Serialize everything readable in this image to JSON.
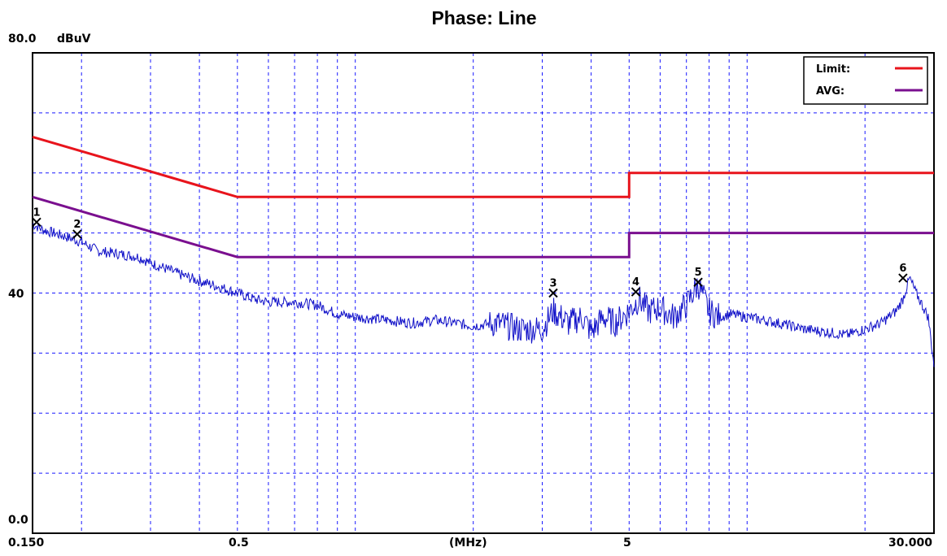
{
  "chart_data": {
    "type": "line",
    "title": "Phase: Line",
    "xlabel": "(MHz)",
    "ylabel": "dBuV",
    "x_scale": "log",
    "xlim": [
      0.15,
      30.0
    ],
    "ylim": [
      0,
      80
    ],
    "x_tick_labels": [
      "0.150",
      "0.5",
      "5",
      "30.000"
    ],
    "y_tick_labels": [
      "80.0",
      "40",
      "0.0"
    ],
    "y_grid": [
      10,
      20,
      30,
      40,
      50,
      60,
      70
    ],
    "grid": true,
    "legend_position": "top-right",
    "colors": {
      "limit": "#e8141c",
      "avg": "#7a0f8f",
      "trace": "#1010c8",
      "grid": "#1a1aff"
    },
    "series": [
      {
        "name": "Limit:",
        "color": "#e8141c",
        "x": [
          0.15,
          0.5,
          0.5,
          5.0,
          5.0,
          30.0
        ],
        "y": [
          66,
          56,
          56,
          56,
          60,
          60
        ]
      },
      {
        "name": "AVG:",
        "color": "#7a0f8f",
        "x": [
          0.15,
          0.5,
          0.5,
          5.0,
          5.0,
          30.0
        ],
        "y": [
          56,
          46,
          46,
          46,
          50,
          50
        ]
      }
    ],
    "trace": {
      "color": "#1010c8",
      "x": [
        0.15,
        0.16,
        0.18,
        0.2,
        0.22,
        0.25,
        0.28,
        0.3,
        0.33,
        0.36,
        0.4,
        0.45,
        0.5,
        0.55,
        0.6,
        0.7,
        0.8,
        0.9,
        1.0,
        1.2,
        1.4,
        1.6,
        1.8,
        2.0,
        2.3,
        2.6,
        3.0,
        3.2,
        3.5,
        3.8,
        4.0,
        4.3,
        4.6,
        5.0,
        5.3,
        5.6,
        6.0,
        6.5,
        7.0,
        7.5,
        8.0,
        8.5,
        9.0,
        10.0,
        11.0,
        12.0,
        13.0,
        14.0,
        16.0,
        18.0,
        20.0,
        22.0,
        24.0,
        25.0,
        26.0,
        27.0,
        28.0,
        29.0,
        30.0
      ],
      "y": [
        51.5,
        50.5,
        49.5,
        48.5,
        47,
        46.5,
        46,
        45,
        44,
        43,
        42,
        41,
        40,
        39,
        38.5,
        38.5,
        38,
        36.5,
        36,
        35.5,
        35,
        35.5,
        35,
        34.5,
        35,
        34,
        34,
        37,
        35,
        36,
        33.5,
        36,
        35,
        37,
        39,
        37,
        37.5,
        36,
        38,
        41.5,
        37,
        36,
        36.5,
        36,
        35.5,
        35,
        34.5,
        34,
        33.5,
        33,
        34,
        35,
        37,
        39,
        42.5,
        40,
        38,
        36,
        28
      ]
    },
    "markers": [
      {
        "label": "1",
        "x": 0.15,
        "y": 51.8
      },
      {
        "label": "2",
        "x": 0.195,
        "y": 49.8
      },
      {
        "label": "3",
        "x": 3.2,
        "y": 40.0
      },
      {
        "label": "4",
        "x": 5.2,
        "y": 40.2
      },
      {
        "label": "5",
        "x": 7.5,
        "y": 41.8
      },
      {
        "label": "6",
        "x": 25.0,
        "y": 42.5
      }
    ]
  }
}
